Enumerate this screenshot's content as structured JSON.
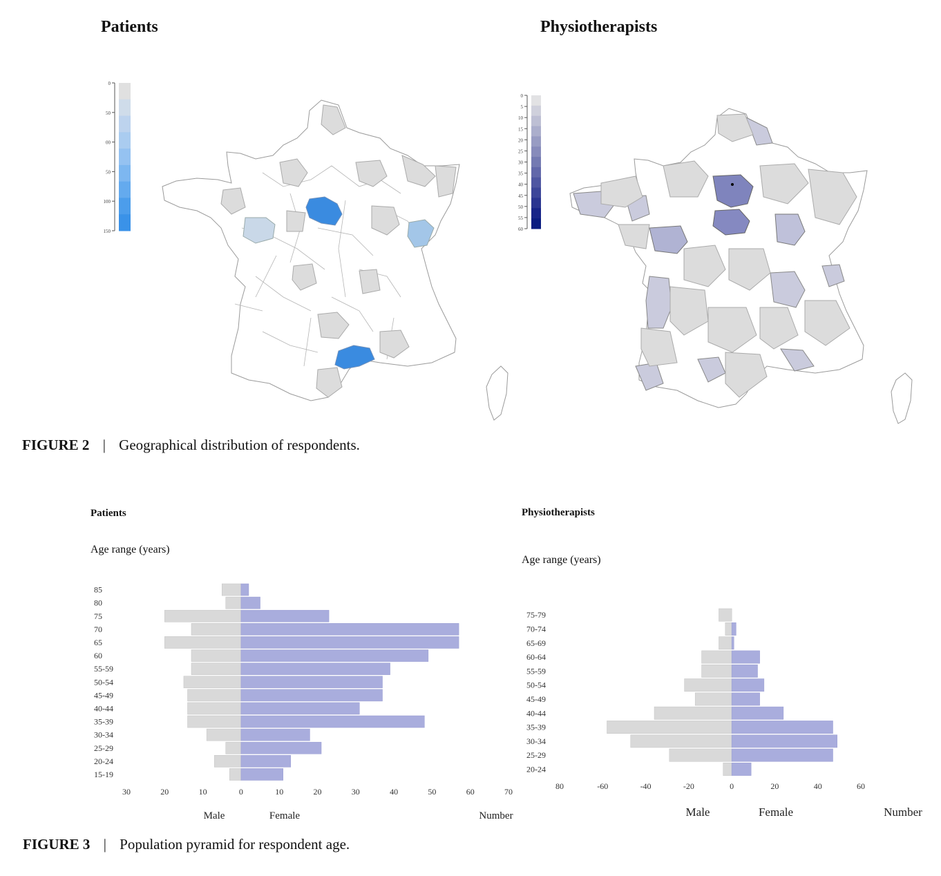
{
  "figure2": {
    "panel_left_title": "Patients",
    "panel_right_title": "Physiotherapists",
    "caption_label": "FIGURE 2",
    "caption_sep": "|",
    "caption_text": "Geographical distribution of respondents.",
    "legend_left": {
      "ticks": [
        "0",
        "50",
        "00",
        "50",
        "100",
        "150"
      ],
      "colors": [
        "#e0e0e0",
        "#cfdcea",
        "#bdd3ee",
        "#aaccf0",
        "#95c2f1",
        "#7db7f0",
        "#64aaee",
        "#4c9deb",
        "#3a92e8"
      ]
    },
    "legend_right": {
      "ticks": [
        "0",
        "5",
        "10",
        "15",
        "20",
        "25",
        "30",
        "35",
        "40",
        "45",
        "50",
        "55",
        "60"
      ],
      "colors": [
        "#e2e2e4",
        "#cfd0dc",
        "#bdbfd4",
        "#abaecc",
        "#989cc3",
        "#878bbb",
        "#747ab2",
        "#6268aa",
        "#4f57a2",
        "#3c4699",
        "#2a3590",
        "#172488",
        "#0a1c80"
      ]
    },
    "highlight_colors": {
      "patients_max": "#3a8be0",
      "patients_mid": "#a3c6e8",
      "patients_low": "#c9d8e8",
      "grey": "#dcdcdc",
      "physio_high": "#7f84bd",
      "physio_mid": "#b0b3d3",
      "physio_low": "#cacbdd"
    }
  },
  "figure3": {
    "caption_label": "FIGURE 3",
    "caption_sep": "|",
    "caption_text": "Population pyramid for respondent age.",
    "male_label": "Male",
    "female_label": "Female",
    "number_label": "Number",
    "male_color": "#d9d9d9",
    "female_color": "#a9addd"
  },
  "chart_data": [
    {
      "type": "bar",
      "subtype": "population-pyramid",
      "title": "Patients",
      "ylabel": "Age range (years)",
      "xlabel": "Number",
      "categories": [
        "85",
        "80",
        "75",
        "70",
        "65",
        "60",
        "55-59",
        "50-54",
        "45-49",
        "40-44",
        "35-39",
        "30-34",
        "25-29",
        "20-24",
        "15-19"
      ],
      "series": [
        {
          "name": "Male",
          "values": [
            5,
            4,
            20,
            13,
            20,
            13,
            13,
            15,
            14,
            14,
            14,
            9,
            4,
            7,
            3
          ]
        },
        {
          "name": "Female",
          "values": [
            2,
            5,
            23,
            57,
            57,
            49,
            39,
            37,
            37,
            31,
            48,
            18,
            21,
            13,
            11
          ]
        }
      ],
      "xticks": [
        "30",
        "20",
        "10",
        "0",
        "10",
        "20",
        "30",
        "40",
        "50",
        "60",
        "70"
      ],
      "xlim": [
        -30,
        70
      ]
    },
    {
      "type": "bar",
      "subtype": "population-pyramid",
      "title": "Physiotherapists",
      "ylabel": "Age range (years)",
      "xlabel": "Number",
      "categories": [
        "75-79",
        "70-74",
        "65-69",
        "60-64",
        "55-59",
        "50-54",
        "45-49",
        "40-44",
        "35-39",
        "30-34",
        "25-29",
        "20-24"
      ],
      "series": [
        {
          "name": "Male",
          "values": [
            6,
            3,
            6,
            14,
            14,
            22,
            17,
            36,
            58,
            47,
            29,
            4
          ]
        },
        {
          "name": "Female",
          "values": [
            0,
            2,
            1,
            13,
            12,
            15,
            13,
            24,
            47,
            49,
            47,
            9
          ]
        }
      ],
      "xticks": [
        "80",
        "-60",
        "-40",
        "-20",
        "0",
        "20",
        "40",
        "60"
      ],
      "xlim": [
        -80,
        60
      ]
    }
  ]
}
